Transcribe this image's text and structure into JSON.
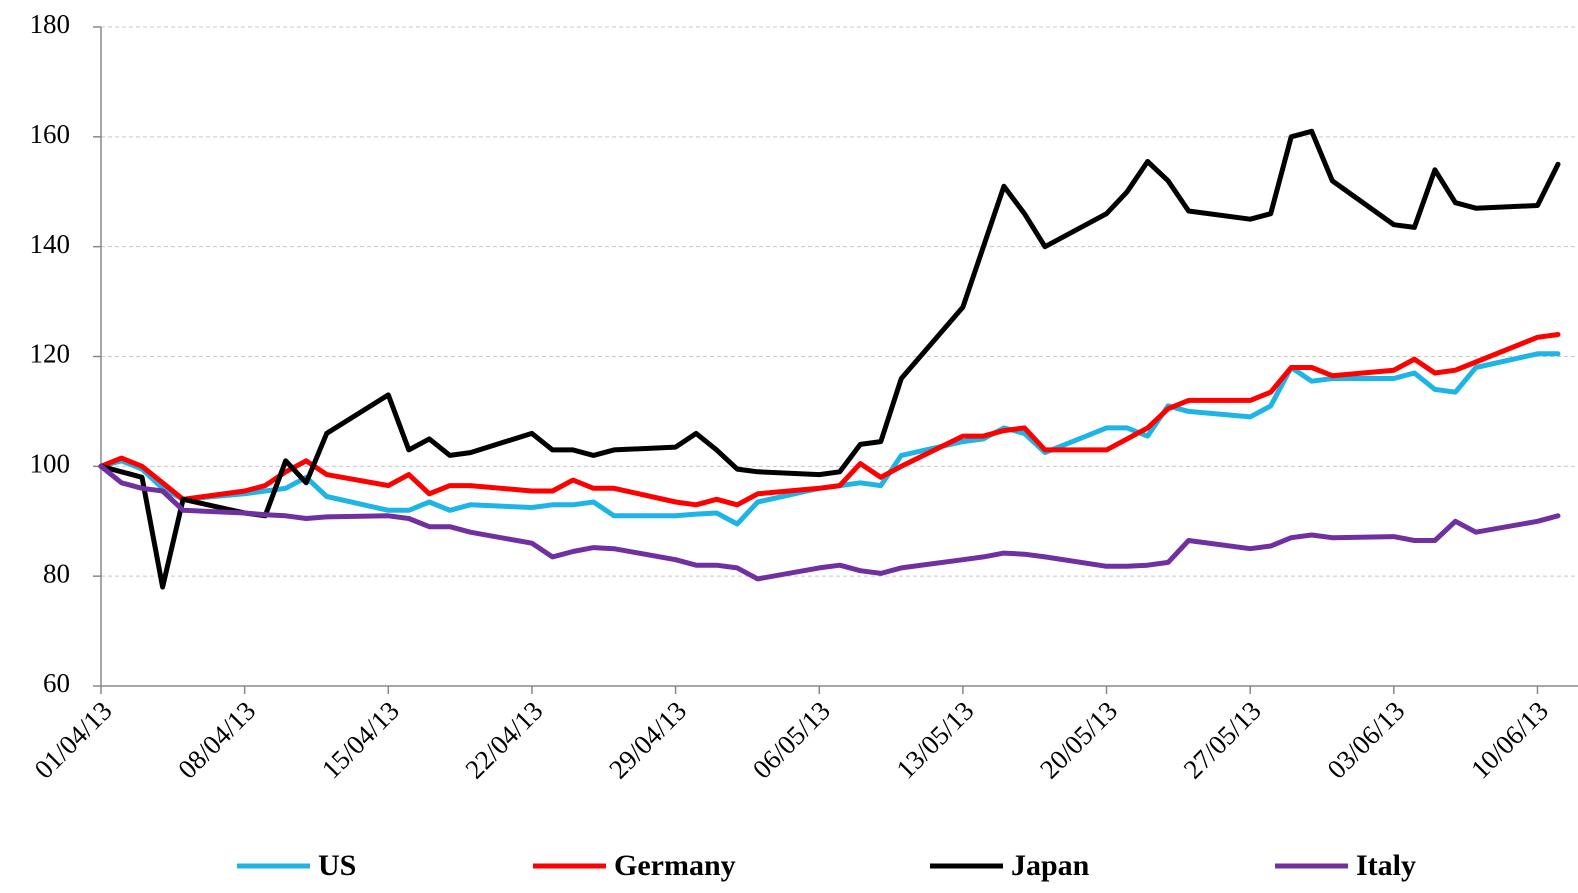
{
  "chart_data": {
    "type": "line",
    "x": [
      "01/04/13",
      "02/04/13",
      "03/04/13",
      "04/04/13",
      "05/04/13",
      "08/04/13",
      "09/04/13",
      "10/04/13",
      "11/04/13",
      "12/04/13",
      "15/04/13",
      "16/04/13",
      "17/04/13",
      "18/04/13",
      "19/04/13",
      "22/04/13",
      "23/04/13",
      "24/04/13",
      "25/04/13",
      "26/04/13",
      "29/04/13",
      "30/04/13",
      "01/05/13",
      "02/05/13",
      "03/05/13",
      "06/05/13",
      "07/05/13",
      "08/05/13",
      "09/05/13",
      "10/05/13",
      "13/05/13",
      "14/05/13",
      "15/05/13",
      "16/05/13",
      "17/05/13",
      "20/05/13",
      "21/05/13",
      "22/05/13",
      "23/05/13",
      "24/05/13",
      "27/05/13",
      "28/05/13",
      "29/05/13",
      "30/05/13",
      "31/05/13",
      "03/06/13",
      "04/06/13",
      "05/06/13",
      "06/06/13",
      "07/06/13",
      "10/06/13",
      "11/06/13"
    ],
    "series": [
      {
        "name": "US",
        "color": "#1fb4e6",
        "values": [
          100,
          101,
          99.5,
          96,
          94,
          95,
          95.5,
          96,
          98,
          94.5,
          92,
          92,
          93.5,
          92,
          93,
          92.5,
          93,
          93,
          93.5,
          91,
          91,
          91.3,
          91.5,
          89.5,
          93.5,
          96,
          96.5,
          97,
          96.5,
          102,
          104.5,
          105,
          107,
          106,
          102.5,
          107,
          107,
          105.5,
          111,
          110,
          109,
          111,
          118,
          115.5,
          116,
          116,
          117,
          114,
          113.5,
          118,
          120.5,
          120.5
        ]
      },
      {
        "name": "Germany",
        "color": "#ff0000",
        "values": [
          100,
          101.5,
          100,
          97,
          94,
          95.5,
          96.5,
          99,
          101,
          98.5,
          96.5,
          98.5,
          95,
          96.5,
          96.5,
          95.5,
          95.5,
          97.5,
          96,
          96,
          93.5,
          93,
          94,
          93,
          95,
          96,
          96.5,
          100.5,
          98,
          100,
          105.5,
          105.5,
          106.5,
          107,
          103,
          103,
          105,
          107,
          110.5,
          112,
          112,
          113.5,
          118,
          118,
          116.5,
          117.5,
          119.5,
          117,
          117.5,
          119,
          123.5,
          124
        ]
      },
      {
        "name": "Japan",
        "color": "#000000",
        "values": [
          100,
          99,
          98,
          78,
          94,
          91.5,
          91,
          101,
          97,
          106,
          113,
          103,
          105,
          102,
          102.5,
          106,
          103,
          103,
          102,
          103,
          103.5,
          106,
          103,
          99.5,
          99,
          98.5,
          99,
          104,
          104.5,
          116,
          129,
          140,
          151,
          146,
          140,
          146,
          150,
          155.5,
          152,
          146.5,
          145,
          146,
          160,
          161,
          152,
          144,
          143.5,
          154,
          148,
          147,
          147.5,
          155
        ]
      },
      {
        "name": "Italy",
        "color": "#7030a0",
        "values": [
          100,
          97,
          96,
          95.5,
          92,
          91.5,
          91.2,
          91,
          90.5,
          90.8,
          91,
          90.5,
          89,
          89,
          88,
          86,
          83.5,
          84.5,
          85.2,
          85,
          83,
          82,
          82,
          81.5,
          79.5,
          81.5,
          82,
          81,
          80.5,
          81.5,
          83,
          83.5,
          84.2,
          84,
          83.5,
          81.8,
          81.8,
          82,
          82.5,
          86.5,
          85,
          85.5,
          87,
          87.5,
          87,
          87.2,
          86.5,
          86.5,
          90,
          88,
          90,
          91
        ]
      }
    ],
    "xlim": [
      "01/04/13",
      "11/06/13"
    ],
    "xticks": [
      "01/04/13",
      "08/04/13",
      "15/04/13",
      "22/04/13",
      "29/04/13",
      "06/05/13",
      "13/05/13",
      "20/05/13",
      "27/05/13",
      "03/06/13",
      "10/06/13"
    ],
    "ylim": [
      60,
      180
    ],
    "yticks": [
      60,
      80,
      100,
      120,
      140,
      160,
      180
    ],
    "grid": true,
    "legend": "bottom"
  }
}
